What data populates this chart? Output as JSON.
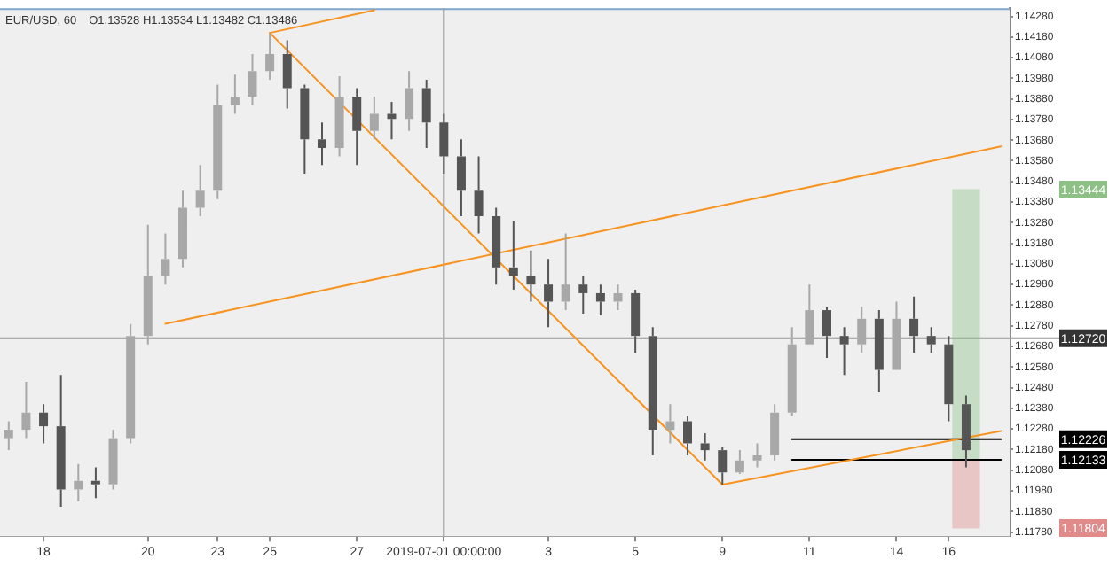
{
  "chart_data": {
    "type": "candlestick",
    "title": "EUR/USD, 60",
    "subtitle": "O1.13528 H1.13534 L1.13482 C1.13486",
    "colors": [
      "#a8a8a8",
      "#a8a8a8",
      "#555555",
      "#555555",
      "#a8a8a8",
      "#555555",
      "#a8a8a8",
      "#a8a8a8",
      "#a8a8a8",
      "#a8a8a8",
      "#a8a8a8",
      "#a8a8a8",
      "#a8a8a8",
      "#a8a8a8",
      "#a8a8a8",
      "#a8a8a8",
      "#555555",
      "#555555",
      "#555555",
      "#a8a8a8",
      "#555555",
      "#a8a8a8",
      "#555555",
      "#a8a8a8",
      "#555555",
      "#555555",
      "#555555",
      "#555555",
      "#555555",
      "#555555",
      "#555555",
      "#555555",
      "#a8a8a8",
      "#555555",
      "#555555",
      "#a8a8a8",
      "#555555",
      "#555555",
      "#a8a8a8",
      "#555555",
      "#555555",
      "#555555",
      "#a8a8a8",
      "#a8a8a8",
      "#a8a8a8",
      "#a8a8a8",
      "#a8a8a8",
      "#555555",
      "#555555",
      "#a8a8a8",
      "#555555",
      "#a8a8a8",
      "#555555",
      "#555555",
      "#555555",
      "#555555",
      null,
      null
    ],
    "marker": "none",
    "line_style": "solid",
    "categories": [
      null,
      null,
      "18",
      null,
      null,
      null,
      null,
      null,
      "20",
      null,
      null,
      null,
      "23",
      null,
      null,
      "25",
      null,
      null,
      null,
      null,
      "27",
      null,
      null,
      null,
      null,
      "2019-07-01 00:00:00",
      null,
      null,
      null,
      null,
      null,
      "3",
      null,
      null,
      null,
      null,
      "5",
      null,
      null,
      null,
      null,
      "9",
      null,
      null,
      null,
      null,
      "11",
      null,
      null,
      null,
      null,
      "14",
      null,
      null,
      "16",
      null,
      null,
      null
    ],
    "ohlc": [
      [
        1.12235,
        1.12317,
        1.12177,
        1.12276
      ],
      [
        1.12276,
        1.12508,
        1.12235,
        1.12359
      ],
      [
        1.12359,
        1.124,
        1.1221,
        1.12293
      ],
      [
        1.12293,
        1.12541,
        1.11903,
        1.11986
      ],
      [
        1.11986,
        1.1211,
        1.11928,
        1.12028
      ],
      [
        1.12028,
        1.12094,
        1.11945,
        1.12011
      ],
      [
        1.12011,
        1.12276,
        1.11986,
        1.12235
      ],
      [
        1.12235,
        1.12789,
        1.1221,
        1.12731
      ],
      [
        1.12731,
        1.1327,
        1.1269,
        1.13021
      ],
      [
        1.13021,
        1.13228,
        1.1298,
        1.13104
      ],
      [
        1.13104,
        1.13435,
        1.13063,
        1.13352
      ],
      [
        1.13352,
        1.13559,
        1.13311,
        1.13435
      ],
      [
        1.13435,
        1.13949,
        1.13394,
        1.13849
      ],
      [
        1.13849,
        1.13998,
        1.13808,
        1.13891
      ],
      [
        1.13891,
        1.14098,
        1.13849,
        1.14015
      ],
      [
        1.14015,
        1.14197,
        1.13973,
        1.14098
      ],
      [
        1.14098,
        1.14164,
        1.13833,
        1.13932
      ],
      [
        1.13932,
        1.13949,
        1.13518,
        1.13684
      ],
      [
        1.13684,
        1.13766,
        1.13559,
        1.13642
      ],
      [
        1.13642,
        1.1399,
        1.13601,
        1.13891
      ],
      [
        1.13891,
        1.13932,
        1.13559,
        1.13725
      ],
      [
        1.13725,
        1.13891,
        1.13684,
        1.13808
      ],
      [
        1.13808,
        1.13866,
        1.13684,
        1.13783
      ],
      [
        1.13783,
        1.14015,
        1.13725,
        1.13932
      ],
      [
        1.13932,
        1.13973,
        1.13642,
        1.13766
      ],
      [
        1.13766,
        1.13808,
        1.13518,
        1.13601
      ],
      [
        1.13601,
        1.13684,
        1.13311,
        1.13435
      ],
      [
        1.13435,
        1.13601,
        1.13228,
        1.13311
      ],
      [
        1.13311,
        1.13352,
        1.1298,
        1.13063
      ],
      [
        1.13063,
        1.13286,
        1.12955,
        1.13021
      ],
      [
        1.13021,
        1.13145,
        1.12897,
        1.1298
      ],
      [
        1.1298,
        1.13104,
        1.12773,
        1.12897
      ],
      [
        1.12897,
        1.13228,
        1.12856,
        1.1298
      ],
      [
        1.1298,
        1.13021,
        1.12839,
        1.12938
      ],
      [
        1.12938,
        1.1298,
        1.12831,
        1.12897
      ],
      [
        1.12897,
        1.1298,
        1.12856,
        1.12938
      ],
      [
        1.12938,
        1.12955,
        1.12649,
        1.12731
      ],
      [
        1.12731,
        1.12773,
        1.12152,
        1.12276
      ],
      [
        1.12276,
        1.124,
        1.1221,
        1.12317
      ],
      [
        1.12317,
        1.12342,
        1.12152,
        1.1221
      ],
      [
        1.1221,
        1.12259,
        1.12127,
        1.12177
      ],
      [
        1.12177,
        1.12193,
        1.12011,
        1.12069
      ],
      [
        1.12069,
        1.12177,
        1.12061,
        1.12127
      ],
      [
        1.12127,
        1.1221,
        1.12094,
        1.12152
      ],
      [
        1.12152,
        1.124,
        1.12127,
        1.12359
      ],
      [
        1.12359,
        1.12773,
        1.12342,
        1.1269
      ],
      [
        1.1269,
        1.1298,
        1.1269,
        1.12856
      ],
      [
        1.12856,
        1.12872,
        1.12624,
        1.12731
      ],
      [
        1.12731,
        1.12773,
        1.12541,
        1.1269
      ],
      [
        1.1269,
        1.12872,
        1.12649,
        1.12814
      ],
      [
        1.12814,
        1.12856,
        1.12458,
        1.12566
      ],
      [
        1.12566,
        1.12897,
        1.12566,
        1.12814
      ],
      [
        1.12814,
        1.12922,
        1.12649,
        1.12731
      ],
      [
        1.12731,
        1.12773,
        1.12649,
        1.1269
      ],
      [
        1.1269,
        1.12731,
        1.12317,
        1.124
      ],
      [
        1.124,
        1.12442,
        1.12094,
        1.12177
      ],
      null,
      null
    ],
    "series": [
      {
        "type": "bar",
        "name": "1.13444",
        "color": "#8cc084",
        "base": [
          null,
          null,
          null,
          null,
          null,
          null,
          null,
          null,
          null,
          null,
          null,
          null,
          null,
          null,
          null,
          null,
          null,
          null,
          null,
          null,
          null,
          null,
          null,
          null,
          null,
          null,
          null,
          null,
          null,
          null,
          null,
          null,
          null,
          null,
          null,
          null,
          null,
          null,
          null,
          null,
          null,
          null,
          null,
          null,
          null,
          null,
          null,
          null,
          null,
          null,
          null,
          null,
          null,
          null,
          null,
          1.1213,
          null,
          null
        ],
        "values": [
          null,
          null,
          null,
          null,
          null,
          null,
          null,
          null,
          null,
          null,
          null,
          null,
          null,
          null,
          null,
          null,
          null,
          null,
          null,
          null,
          null,
          null,
          null,
          null,
          null,
          null,
          null,
          null,
          null,
          null,
          null,
          null,
          null,
          null,
          null,
          null,
          null,
          null,
          null,
          null,
          null,
          null,
          null,
          null,
          null,
          null,
          null,
          null,
          null,
          null,
          null,
          null,
          null,
          null,
          null,
          0.0131,
          null,
          null
        ]
      },
      {
        "type": "bar",
        "name": "1.11804",
        "color": "#e08a8a",
        "base": [
          null,
          null,
          null,
          null,
          null,
          null,
          null,
          null,
          null,
          null,
          null,
          null,
          null,
          null,
          null,
          null,
          null,
          null,
          null,
          null,
          null,
          null,
          null,
          null,
          null,
          null,
          null,
          null,
          null,
          null,
          null,
          null,
          null,
          null,
          null,
          null,
          null,
          null,
          null,
          null,
          null,
          null,
          null,
          null,
          null,
          null,
          null,
          null,
          null,
          null,
          null,
          null,
          null,
          null,
          null,
          1.118,
          null,
          null
        ],
        "values": [
          null,
          null,
          null,
          null,
          null,
          null,
          null,
          null,
          null,
          null,
          null,
          null,
          null,
          null,
          null,
          null,
          null,
          null,
          null,
          null,
          null,
          null,
          null,
          null,
          null,
          null,
          null,
          null,
          null,
          null,
          null,
          null,
          null,
          null,
          null,
          null,
          null,
          null,
          null,
          null,
          null,
          null,
          null,
          null,
          null,
          null,
          null,
          null,
          null,
          null,
          null,
          null,
          null,
          null,
          null,
          0.0033,
          null,
          null
        ]
      },
      {
        "type": "line",
        "color": "#f7931e",
        "values": [
          null,
          null,
          null,
          null,
          null,
          null,
          null,
          null,
          null,
          null,
          null,
          null,
          null,
          null,
          null,
          1.142,
          null,
          null,
          null,
          null,
          null,
          null,
          null,
          null,
          null,
          null,
          null,
          null,
          null,
          null,
          null,
          null,
          null,
          null,
          null,
          null,
          null,
          null,
          null,
          null,
          null,
          1.1201,
          null,
          null,
          null,
          null,
          null,
          null,
          null,
          null,
          null,
          null,
          null,
          null,
          null,
          null,
          null,
          null
        ]
      },
      {
        "type": "line",
        "color": "#f7931e",
        "values": [
          null,
          null,
          null,
          null,
          null,
          null,
          null,
          null,
          null,
          null,
          null,
          null,
          null,
          null,
          null,
          null,
          null,
          null,
          null,
          null,
          null,
          null,
          null,
          null,
          null,
          null,
          null,
          null,
          null,
          null,
          null,
          null,
          null,
          null,
          null,
          null,
          null,
          null,
          null,
          null,
          null,
          1.1201,
          null,
          null,
          null,
          null,
          null,
          null,
          null,
          null,
          null,
          null,
          null,
          null,
          null,
          null,
          null,
          1.1227
        ]
      },
      {
        "type": "line",
        "color": "#f7931e",
        "values": [
          null,
          null,
          null,
          null,
          null,
          null,
          null,
          null,
          null,
          1.1279,
          null,
          null,
          null,
          null,
          null,
          null,
          null,
          null,
          null,
          null,
          null,
          null,
          null,
          null,
          null,
          null,
          null,
          null,
          null,
          null,
          null,
          null,
          null,
          null,
          null,
          null,
          null,
          null,
          null,
          null,
          null,
          null,
          null,
          null,
          null,
          null,
          null,
          null,
          null,
          null,
          null,
          null,
          null,
          null,
          null,
          null,
          null,
          1.1365
        ]
      },
      {
        "type": "line",
        "color": "#f7931e",
        "values": [
          null,
          null,
          null,
          null,
          null,
          null,
          null,
          null,
          null,
          null,
          null,
          null,
          null,
          null,
          null,
          1.142,
          null,
          null,
          null,
          null,
          null,
          1.1431,
          null,
          null,
          null,
          null,
          null,
          null,
          null,
          null,
          null,
          null,
          null,
          null,
          null,
          null,
          null,
          null,
          null,
          null,
          null,
          null,
          null,
          null,
          null,
          null,
          null,
          null,
          null,
          null,
          null,
          null,
          null,
          null,
          null,
          null,
          null,
          null
        ]
      },
      {
        "type": "line",
        "name": "1.12226",
        "color": "#000000",
        "values": [
          null,
          null,
          null,
          null,
          null,
          null,
          null,
          null,
          null,
          null,
          null,
          null,
          null,
          null,
          null,
          null,
          null,
          null,
          null,
          null,
          null,
          null,
          null,
          null,
          null,
          null,
          null,
          null,
          null,
          null,
          null,
          null,
          null,
          null,
          null,
          null,
          null,
          null,
          null,
          null,
          null,
          null,
          null,
          null,
          null,
          1.1223,
          null,
          null,
          null,
          null,
          null,
          null,
          null,
          null,
          null,
          null,
          null,
          1.1223
        ]
      },
      {
        "type": "line",
        "name": "1.12133",
        "color": "#000000",
        "values": [
          null,
          null,
          null,
          null,
          null,
          null,
          null,
          null,
          null,
          null,
          null,
          null,
          null,
          null,
          null,
          null,
          null,
          null,
          null,
          null,
          null,
          null,
          null,
          null,
          null,
          null,
          null,
          null,
          null,
          null,
          null,
          null,
          null,
          null,
          null,
          null,
          null,
          null,
          null,
          null,
          null,
          null,
          null,
          null,
          null,
          1.1213,
          null,
          null,
          null,
          null,
          null,
          null,
          null,
          null,
          null,
          null,
          null,
          1.1213
        ]
      }
    ],
    "ref_lines": [
      {
        "axis": "y",
        "value": 1.1272,
        "label": "1.12720",
        "color": "#999999"
      },
      {
        "axis": "x",
        "value": "2019-07-01 00:00:00",
        "color": "#999999"
      }
    ],
    "ylim": [
      1.1176,
      1.1432
    ],
    "yticks": [
      {
        "value": 1.1178,
        "label": "1.11780"
      },
      {
        "value": 1.1188,
        "label": "1.11880"
      },
      {
        "value": 1.1198,
        "label": "1.11980"
      },
      {
        "value": 1.1208,
        "label": "1.12080"
      },
      {
        "value": 1.1218,
        "label": "1.12180"
      },
      {
        "value": 1.1228,
        "label": "1.12280"
      },
      {
        "value": 1.1238,
        "label": "1.12380"
      },
      {
        "value": 1.1248,
        "label": "1.12480"
      },
      {
        "value": 1.1258,
        "label": "1.12580"
      },
      {
        "value": 1.1268,
        "label": "1.12680"
      },
      {
        "value": 1.1278,
        "label": "1.12780"
      },
      {
        "value": 1.1288,
        "label": "1.12880"
      },
      {
        "value": 1.1298,
        "label": "1.12980"
      },
      {
        "value": 1.1308,
        "label": "1.13080"
      },
      {
        "value": 1.1318,
        "label": "1.13180"
      },
      {
        "value": 1.1328,
        "label": "1.13280"
      },
      {
        "value": 1.1338,
        "label": "1.13380"
      },
      {
        "value": 1.1348,
        "label": "1.13480"
      },
      {
        "value": 1.1358,
        "label": "1.13580"
      },
      {
        "value": 1.1368,
        "label": "1.13680"
      },
      {
        "value": 1.1378,
        "label": "1.13780"
      },
      {
        "value": 1.1388,
        "label": "1.13880"
      },
      {
        "value": 1.1398,
        "label": "1.13980"
      },
      {
        "value": 1.1408,
        "label": "1.14080"
      },
      {
        "value": 1.1418,
        "label": "1.14180"
      },
      {
        "value": 1.1428,
        "label": "1.14280"
      }
    ]
  }
}
